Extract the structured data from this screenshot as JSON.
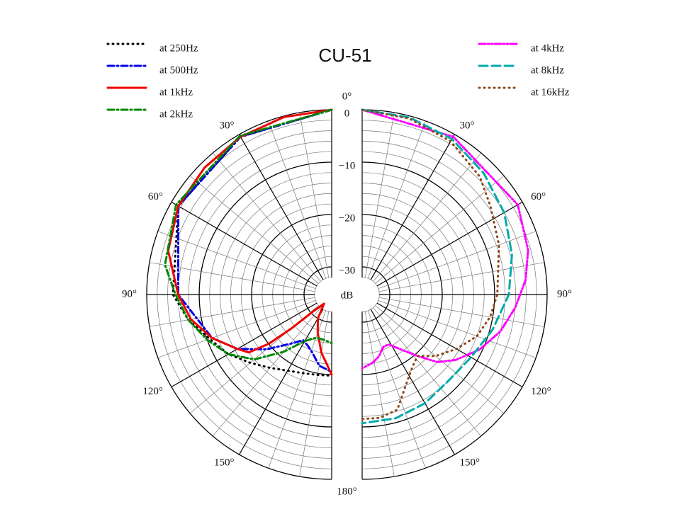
{
  "chart_data": {
    "type": "polar",
    "title": "CU-51",
    "rlim": [
      -35,
      0
    ],
    "rticks": [
      0,
      {
        "value": -10,
        "label": "−10"
      },
      {
        "value": -20,
        "label": "−20"
      },
      {
        "value": -30,
        "label": "−30"
      }
    ],
    "r_unit": "dB",
    "rgrid": [
      0,
      -2,
      -4,
      -6,
      -8,
      -10,
      -12,
      -14,
      -16,
      -18,
      -20,
      -22,
      -24,
      -26,
      -28,
      -30,
      -32
    ],
    "thetagrid": [
      0,
      10,
      20,
      30,
      40,
      50,
      60,
      70,
      80,
      90,
      100,
      110,
      120,
      130,
      140,
      150,
      160,
      170,
      180
    ],
    "thetaticks": [
      {
        "value": 0,
        "label": "0°"
      },
      {
        "value": 30,
        "label": "30°"
      },
      {
        "value": 60,
        "label": "60°"
      },
      {
        "value": 90,
        "label": "90°"
      },
      {
        "value": 120,
        "label": "120°"
      },
      {
        "value": 150,
        "label": "150°"
      },
      {
        "value": 180,
        "label": "180°"
      }
    ],
    "series": [
      {
        "name": "at 250Hz",
        "color": "#000000",
        "linestyle": "dotted",
        "side": "left",
        "theta": [
          0,
          30,
          60,
          90,
          100,
          110,
          120,
          130,
          140,
          150,
          160,
          170,
          180
        ],
        "values": [
          0,
          -0.5,
          -1.5,
          -5,
          -7.5,
          -10.5,
          -12.5,
          -15,
          -17,
          -18.5,
          -19.3,
          -19.7,
          -19.8
        ]
      },
      {
        "name": "at 500Hz",
        "color": "#0000ee",
        "linestyle": "dashdot",
        "side": "left",
        "theta": [
          0,
          30,
          60,
          90,
          110,
          120,
          130,
          140,
          148,
          155,
          162,
          170,
          180
        ],
        "values": [
          0,
          -0.5,
          -1.5,
          -6,
          -11,
          -14.5,
          -19,
          -23,
          -25,
          -24.5,
          -23.5,
          -21.5,
          -20.5
        ]
      },
      {
        "name": "at 1kHz",
        "color": "#ee0000",
        "linestyle": "solid",
        "side": "left",
        "theta": [
          0,
          15,
          30,
          45,
          60,
          75,
          90,
          100,
          110,
          120,
          125,
          128,
          130,
          133,
          140,
          150,
          160,
          170,
          180
        ],
        "values": [
          0,
          -0.2,
          -0.5,
          -1,
          -1.5,
          -3,
          -6,
          -8,
          -11,
          -14.5,
          -16,
          -20,
          -25,
          -31,
          -33,
          -30,
          -27.5,
          -24,
          -20
        ]
      },
      {
        "name": "at 2kHz",
        "color": "#008800",
        "linestyle": "dashdot",
        "side": "left",
        "theta": [
          0,
          30,
          60,
          80,
          90,
          100,
          110,
          120,
          130,
          140,
          150,
          160,
          170,
          180
        ],
        "values": [
          0,
          -0.3,
          -1,
          -3,
          -5.5,
          -7.5,
          -10,
          -12.5,
          -16,
          -21,
          -25,
          -26.5,
          -26.5,
          -26
        ]
      },
      {
        "name": "at 4kHz",
        "color": "#ff00ff",
        "linestyle": "dashdotdot",
        "side": "right",
        "theta": [
          0,
          30,
          60,
          75,
          85,
          95,
          105,
          115,
          125,
          132,
          138,
          145,
          152,
          158,
          165,
          172,
          180
        ],
        "values": [
          0,
          -0.5,
          -1,
          -2.5,
          -4,
          -6,
          -8,
          -10.5,
          -13.5,
          -16,
          -19.5,
          -22.5,
          -24.5,
          -24.5,
          -23,
          -22,
          -21.2
        ]
      },
      {
        "name": "at 8kHz",
        "color": "#00aaaa",
        "linestyle": "dashed",
        "side": "right",
        "theta": [
          0,
          15,
          30,
          45,
          60,
          75,
          90,
          105,
          120,
          135,
          150,
          165,
          180
        ],
        "values": [
          0,
          -0.3,
          -1,
          -2.5,
          -4,
          -5.7,
          -7.3,
          -9.5,
          -11.3,
          -12,
          -11.3,
          -10.8,
          -10.7
        ]
      },
      {
        "name": "at 16kHz",
        "color": "#8b4513",
        "linestyle": "dotted",
        "side": "right",
        "theta": [
          0,
          15,
          30,
          45,
          55,
          70,
          90,
          100,
          110,
          120,
          130,
          138,
          145,
          153,
          163,
          172,
          180
        ],
        "values": [
          0,
          -0.5,
          -1.5,
          -3.5,
          -5.5,
          -7.5,
          -9.5,
          -10.5,
          -12,
          -14.5,
          -17,
          -19.5,
          -18.5,
          -16.5,
          -12.3,
          -11.5,
          -11.5
        ]
      }
    ]
  }
}
